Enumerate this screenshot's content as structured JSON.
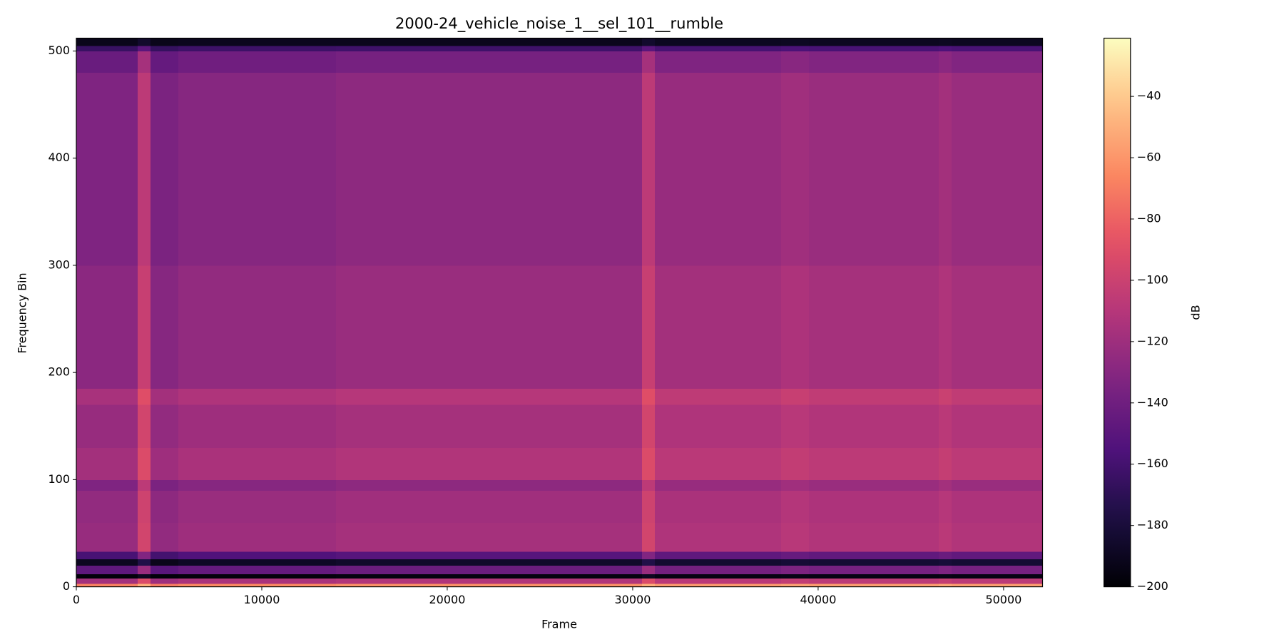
{
  "chart_data": {
    "type": "heatmap",
    "title": "2000-24_vehicle_noise_1__sel_101__rumble",
    "x_label": "Frame",
    "y_label": "Frequency Bin",
    "colorbar_label": "dB",
    "colormap": "magma",
    "x_bins": [
      0,
      3300,
      4000,
      5500,
      14000,
      30500,
      31200,
      38000,
      39500,
      46500,
      47200,
      52100
    ],
    "y_bins": [
      0,
      3,
      8,
      12,
      20,
      26,
      33,
      60,
      90,
      100,
      130,
      170,
      185,
      300,
      480,
      500,
      505,
      512
    ],
    "z": [
      [
        -68,
        -50,
        -70,
        -65,
        -62,
        -50,
        -58,
        -55,
        -57,
        -53,
        -57
      ],
      [
        -118,
        -92,
        -120,
        -115,
        -112,
        -92,
        -108,
        -104,
        -107,
        -103,
        -107
      ],
      [
        -198,
        -190,
        -198,
        -197,
        -196,
        -190,
        -195,
        -194,
        -195,
        -194,
        -195
      ],
      [
        -148,
        -122,
        -150,
        -145,
        -142,
        -122,
        -138,
        -134,
        -137,
        -133,
        -137
      ],
      [
        -190,
        -175,
        -192,
        -188,
        -186,
        -175,
        -184,
        -182,
        -183,
        -181,
        -183
      ],
      [
        -158,
        -132,
        -160,
        -155,
        -152,
        -132,
        -148,
        -144,
        -147,
        -143,
        -147
      ],
      [
        -123,
        -97,
        -125,
        -120,
        -117,
        -97,
        -113,
        -109,
        -112,
        -108,
        -112
      ],
      [
        -125,
        -99,
        -127,
        -122,
        -119,
        -99,
        -115,
        -111,
        -114,
        -110,
        -114
      ],
      [
        -133,
        -107,
        -135,
        -130,
        -127,
        -107,
        -123,
        -119,
        -122,
        -118,
        -122
      ],
      [
        -118,
        -92,
        -120,
        -115,
        -112,
        -92,
        -108,
        -104,
        -107,
        -103,
        -107
      ],
      [
        -123,
        -97,
        -125,
        -120,
        -117,
        -97,
        -113,
        -109,
        -112,
        -108,
        -112
      ],
      [
        -116,
        -90,
        -118,
        -113,
        -110,
        -90,
        -106,
        -102,
        -105,
        -101,
        -105
      ],
      [
        -128,
        -102,
        -130,
        -125,
        -122,
        -102,
        -118,
        -114,
        -117,
        -113,
        -117
      ],
      [
        -133,
        -107,
        -135,
        -130,
        -127,
        -107,
        -123,
        -119,
        -122,
        -118,
        -122
      ],
      [
        -143,
        -117,
        -145,
        -140,
        -137,
        -117,
        -133,
        -129,
        -132,
        -128,
        -132
      ],
      [
        -165,
        -150,
        -166,
        -163,
        -162,
        -150,
        -159,
        -157,
        -158,
        -156,
        -158
      ],
      [
        -192,
        -185,
        -192,
        -191,
        -191,
        -185,
        -190,
        -189,
        -190,
        -189,
        -190
      ]
    ],
    "xlim": [
      0,
      52100
    ],
    "xticks": [
      0,
      10000,
      20000,
      30000,
      40000,
      50000
    ],
    "ylim": [
      0,
      512
    ],
    "yticks": [
      0,
      100,
      200,
      300,
      400,
      500
    ],
    "clim": [
      -200,
      -21
    ],
    "cticks": [
      {
        "value": -40,
        "label": "−40"
      },
      {
        "value": -60,
        "label": "−60"
      },
      {
        "value": -80,
        "label": "−80"
      },
      {
        "value": -100,
        "label": "−100"
      },
      {
        "value": -120,
        "label": "−120"
      },
      {
        "value": -140,
        "label": "−140"
      },
      {
        "value": -160,
        "label": "−160"
      },
      {
        "value": -180,
        "label": "−180"
      },
      {
        "value": -200,
        "label": "−200"
      }
    ]
  }
}
